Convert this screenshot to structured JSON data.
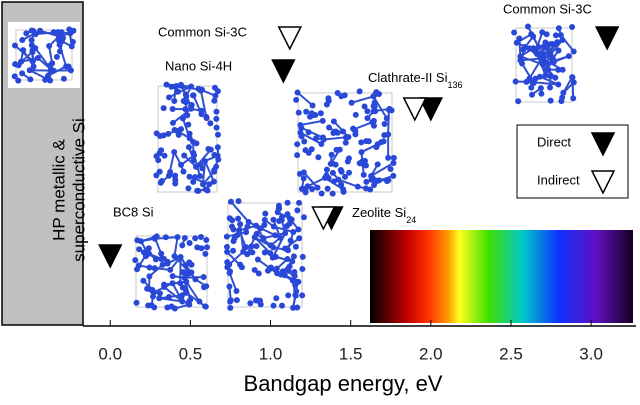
{
  "chart_data": {
    "type": "scatter",
    "xlabel": "Bandgap energy, eV",
    "xlim": [
      -0.17,
      3.28
    ],
    "xticks": [
      {
        "value": 0,
        "label": "0.0"
      },
      0.5,
      {
        "value": 1,
        "label": "1.0"
      },
      1.5,
      {
        "value": 2,
        "label": "2.0"
      },
      2.5,
      {
        "value": 3,
        "label": "3.0"
      }
    ],
    "series": [
      {
        "name": "Direct",
        "color": "#000000",
        "values": [
          0,
          1.08,
          2.0,
          1.38,
          3.1
        ]
      },
      {
        "name": "Indirect",
        "color": "#ffffff",
        "values": [
          1.12,
          1.9,
          1.33
        ]
      }
    ],
    "annotations": {
      "metallic": [
        "HP metallic &",
        "superconductive Si"
      ],
      "si3c_left": "Common Si-3C",
      "si4h": "Nano Si-4H",
      "clathrate": "Clathrate-II Si",
      "clathrate_sub": "136",
      "bc8": "BC8 Si",
      "zeolite": "Zeolite Si",
      "zeolite_sub": "24",
      "si3c_right": "Common Si-3C"
    }
  }
}
